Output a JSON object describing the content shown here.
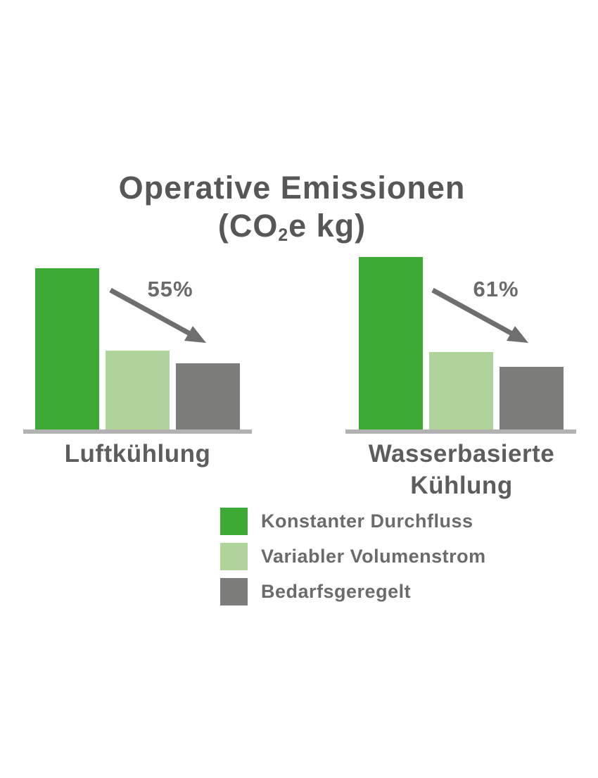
{
  "title": {
    "line1": "Operative Emissionen",
    "line2_pre": "(CO",
    "line2_sub": "2",
    "line2_post": "e kg)"
  },
  "chart_data": {
    "type": "bar",
    "title": "Operative Emissionen (CO2e kg)",
    "categories": [
      "Luftkühlung",
      "Wasserbasierte Kühlung"
    ],
    "series": [
      {
        "name": "Konstanter Durchfluss",
        "color": "#3daa35",
        "values": [
          100,
          107
        ]
      },
      {
        "name": "Variabler Volumenstrom",
        "color": "#aed49a",
        "values": [
          49,
          48
        ]
      },
      {
        "name": "Bedarfsgeregelt",
        "color": "#7c7c7b",
        "values": [
          41,
          39
        ]
      }
    ],
    "value_note": "relative units, tallest Luftkühlung bar = 100; no numeric axis shown",
    "annotations": [
      {
        "group": "Luftkühlung",
        "label": "55%"
      },
      {
        "group": "Wasserbasierte Kühlung",
        "label": "61%"
      }
    ],
    "legend_position": "bottom-center",
    "grid": false,
    "axes": "horizontal baseline only, no ticks",
    "colors": {
      "baseline": "#b2b2b2",
      "title_text": "#575756",
      "category_text": "#5d5d5c",
      "legend_text": "#6b6b6a",
      "arrow": "#706f6f",
      "percent_text": "#6b6a6a"
    }
  }
}
